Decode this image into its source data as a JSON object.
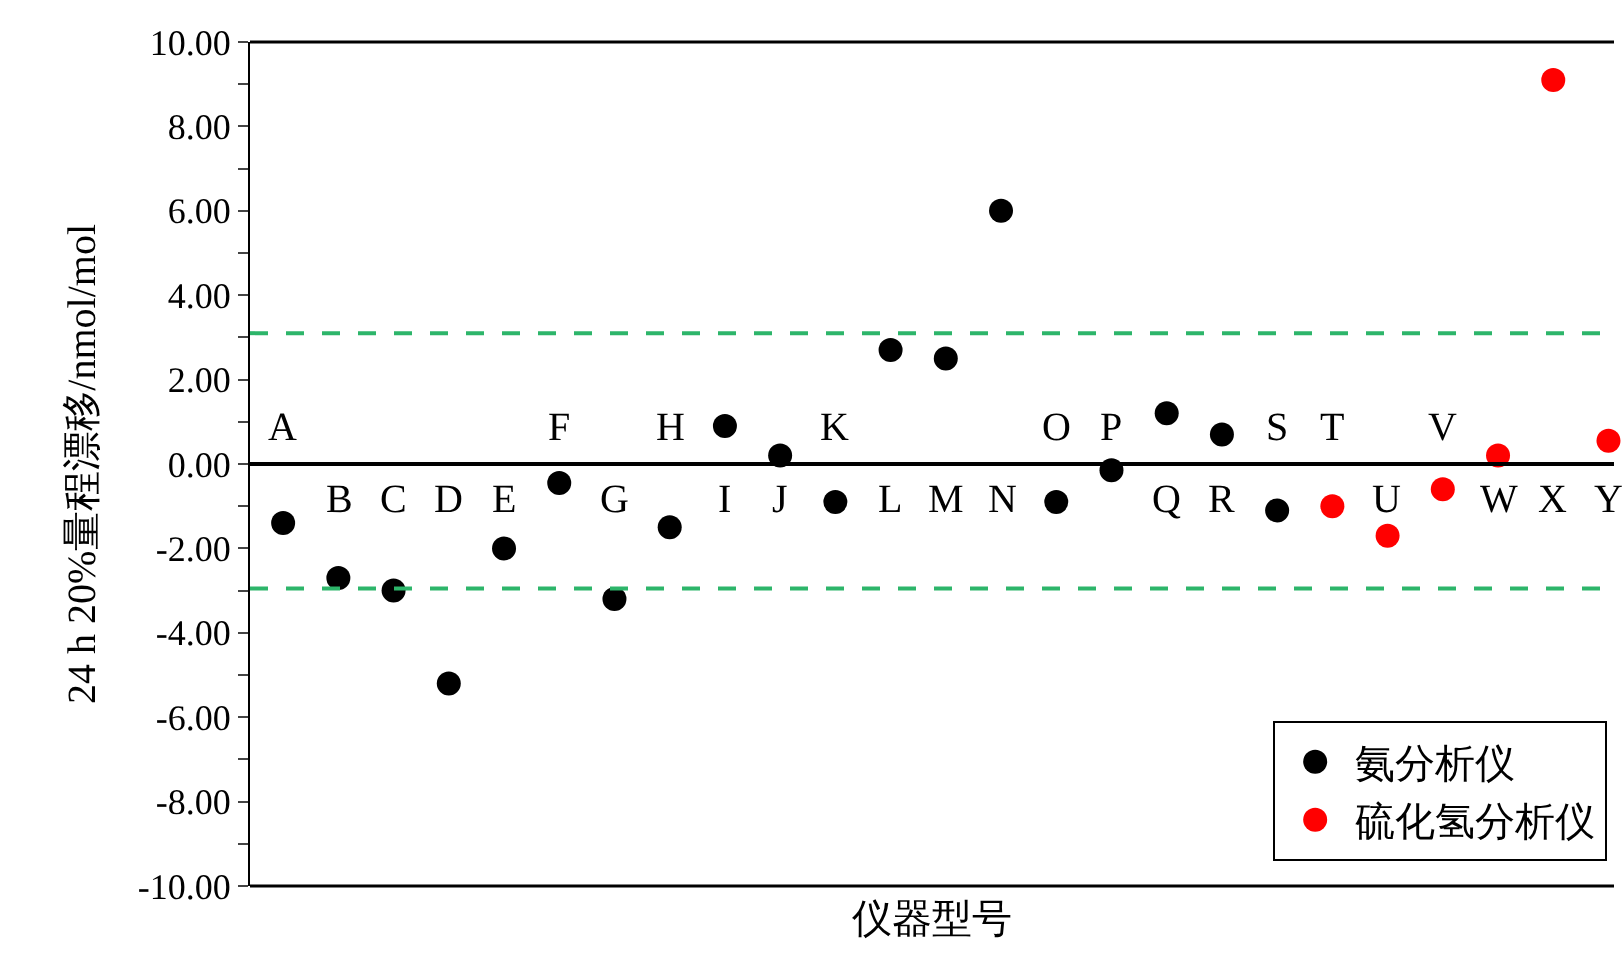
{
  "chart_data": {
    "type": "scatter",
    "xlabel": "仪器型号",
    "ylabel": "24 h 20%量程漂移/nmol/mol",
    "categories": [
      "A",
      "B",
      "C",
      "D",
      "E",
      "F",
      "G",
      "H",
      "I",
      "J",
      "K",
      "L",
      "M",
      "N",
      "O",
      "P",
      "Q",
      "R",
      "S",
      "T",
      "U",
      "V",
      "W",
      "X",
      "Y"
    ],
    "series": [
      {
        "name": "氨分析仪",
        "color": "#000000",
        "values": [
          -1.4,
          -2.7,
          -3.0,
          -5.2,
          -2.0,
          -0.45,
          -3.2,
          -1.5,
          0.9,
          0.2,
          -0.9,
          2.7,
          2.5,
          6.0,
          -0.9,
          -0.15,
          1.2,
          0.7,
          -1.1,
          null,
          null,
          null,
          null,
          null,
          null
        ]
      },
      {
        "name": "硫化氢分析仪",
        "color": "#ff0000",
        "values": [
          null,
          null,
          null,
          null,
          null,
          null,
          null,
          null,
          null,
          null,
          null,
          null,
          null,
          null,
          null,
          null,
          null,
          null,
          null,
          -1.0,
          -1.7,
          -0.6,
          0.2,
          9.1,
          0.55
        ]
      }
    ],
    "ylim": [
      -10,
      10
    ],
    "yticks": [
      {
        "value": -10,
        "label": "-10.00"
      },
      {
        "value": -9,
        "label": null
      },
      {
        "value": -8,
        "label": "-8.00"
      },
      {
        "value": -7,
        "label": null
      },
      {
        "value": -6,
        "label": "-6.00"
      },
      {
        "value": -5,
        "label": null
      },
      {
        "value": -4,
        "label": "-4.00"
      },
      {
        "value": -3,
        "label": null
      },
      {
        "value": -2,
        "label": "-2.00"
      },
      {
        "value": -1,
        "label": null
      },
      {
        "value": 0,
        "label": "0.00"
      },
      {
        "value": 1,
        "label": null
      },
      {
        "value": 2,
        "label": "2.00"
      },
      {
        "value": 3,
        "label": null
      },
      {
        "value": 4,
        "label": "4.00"
      },
      {
        "value": 5,
        "label": null
      },
      {
        "value": 6,
        "label": "6.00"
      },
      {
        "value": 7,
        "label": null
      },
      {
        "value": 8,
        "label": "8.00"
      },
      {
        "value": 9,
        "label": null
      },
      {
        "value": 10,
        "label": "10.00"
      }
    ],
    "ref_lines": [
      {
        "axis": "y",
        "value": 3.1,
        "color": "#2db56a",
        "line_style": "dashed"
      },
      {
        "axis": "y",
        "value": -2.95,
        "color": "#2db56a",
        "line_style": "dashed"
      }
    ],
    "marker": "circle",
    "grid": false,
    "legend": "bottom right"
  }
}
